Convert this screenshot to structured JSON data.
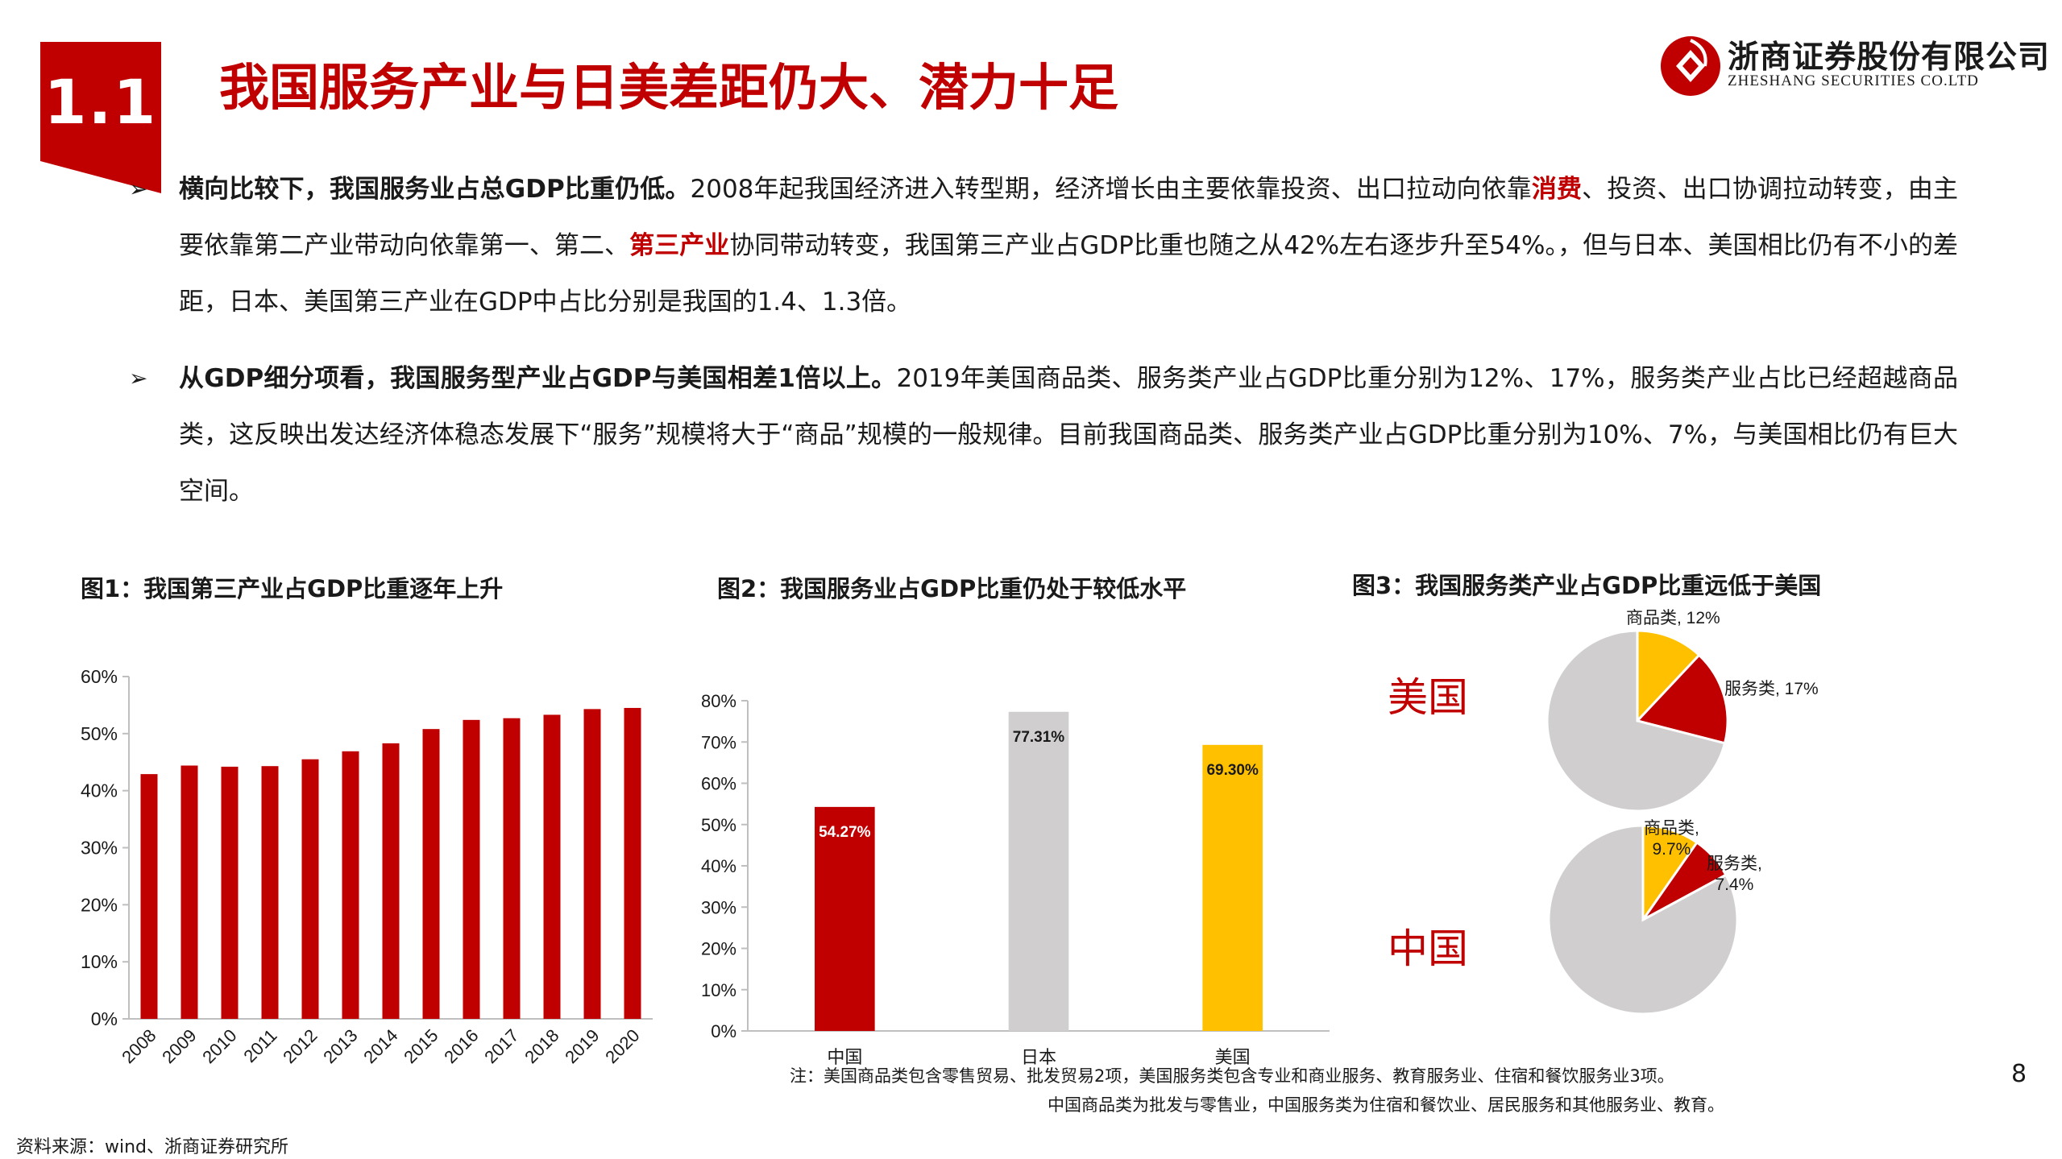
{
  "header": {
    "section_number": "1.1",
    "title": "我国服务产业与日美差距仍大、潜力十足",
    "logo_cn": "浙商证券股份有限公司",
    "logo_en": "ZHESHANG SECURITIES CO.LTD"
  },
  "bullets": [
    {
      "lead": "横向比较下，我国服务业占总GDP比重仍低。",
      "t1": "2008年起我国经济进入转型期，经济增长由主要依靠投资、出口拉动向依靠",
      "h1": "消费",
      "t2": "、投资、出口协调拉动转变，由主要依靠第二产业带动向依靠第一、第二、",
      "h2": "第三产业",
      "t3": "协同带动转变，我国第三产业占GDP比重也随之从42%左右逐步升至54%。，但与日本、美国相比仍有不小的差距，日本、美国第三产业在GDP中占比分别是我国的1.4、1.3倍。"
    },
    {
      "lead": "从GDP细分项看，我国服务型产业占GDP与美国相差1倍以上。",
      "t1": "2019年美国商品类、服务类产业占GDP比重分别为12%、17%，服务类产业占比已经超越商品类，这反映出发达经济体稳态发展下“服务”规模将大于“商品”规模的一般规律。目前我国商品类、服务类产业占GDP比重分别为10%、7%，与美国相比仍有巨大空间。"
    }
  ],
  "figures": {
    "fig1_title": "图1：我国第三产业占GDP比重逐年上升",
    "fig2_title": "图2：我国服务业占GDP比重仍处于较低水平",
    "fig3_title": "图3：我国服务类产业占GDP比重远低于美国"
  },
  "chart_data": [
    {
      "type": "bar",
      "title": "图1：我国第三产业占GDP比重逐年上升",
      "categories": [
        "2008",
        "2009",
        "2010",
        "2011",
        "2012",
        "2013",
        "2014",
        "2015",
        "2016",
        "2017",
        "2018",
        "2019",
        "2020"
      ],
      "values": [
        42.9,
        44.4,
        44.2,
        44.3,
        45.5,
        46.9,
        48.3,
        50.8,
        52.4,
        52.7,
        53.3,
        54.3,
        54.5
      ],
      "ylim": [
        0,
        60
      ],
      "yticks": [
        "0%",
        "10%",
        "20%",
        "30%",
        "40%",
        "50%",
        "60%"
      ],
      "color": "#c00000",
      "grid": false
    },
    {
      "type": "bar",
      "title": "图2：我国服务业占GDP比重仍处于较低水平",
      "categories": [
        "中国",
        "日本",
        "美国"
      ],
      "values": [
        54.27,
        77.31,
        69.3
      ],
      "data_labels": [
        "54.27%",
        "77.31%",
        "69.30%"
      ],
      "colors": [
        "#c00000",
        "#d0cece",
        "#ffc000"
      ],
      "ylim": [
        0,
        80
      ],
      "yticks": [
        "0%",
        "10%",
        "20%",
        "30%",
        "40%",
        "50%",
        "60%",
        "70%",
        "80%"
      ],
      "grid": false
    },
    {
      "type": "pie",
      "title": "图3：我国服务类产业占GDP比重远低于美国",
      "pies": [
        {
          "name": "美国",
          "slices": [
            {
              "label": "商品类, 12%",
              "value": 12,
              "color": "#ffc000"
            },
            {
              "label": "服务类, 17%",
              "value": 17,
              "color": "#c00000"
            },
            {
              "label": "",
              "value": 71,
              "color": "#d0cece"
            }
          ]
        },
        {
          "name": "中国",
          "slices": [
            {
              "label": "商品类,\n9.7%",
              "value": 9.7,
              "color": "#ffc000"
            },
            {
              "label": "服务类,\n7.4%",
              "value": 7.4,
              "color": "#c00000"
            },
            {
              "label": "",
              "value": 82.9,
              "color": "#d0cece"
            }
          ]
        }
      ]
    }
  ],
  "notes": {
    "line1": "注：美国商品类包含零售贸易、批发贸易2项，美国服务类包含专业和商业服务、教育服务业、住宿和餐饮服务业3项。",
    "line2": "中国商品类为批发与零售业，中国服务类为住宿和餐饮业、居民服务和其他服务业、教育。"
  },
  "page_number": "8",
  "source": "资料来源：wind、浙商证券研究所"
}
